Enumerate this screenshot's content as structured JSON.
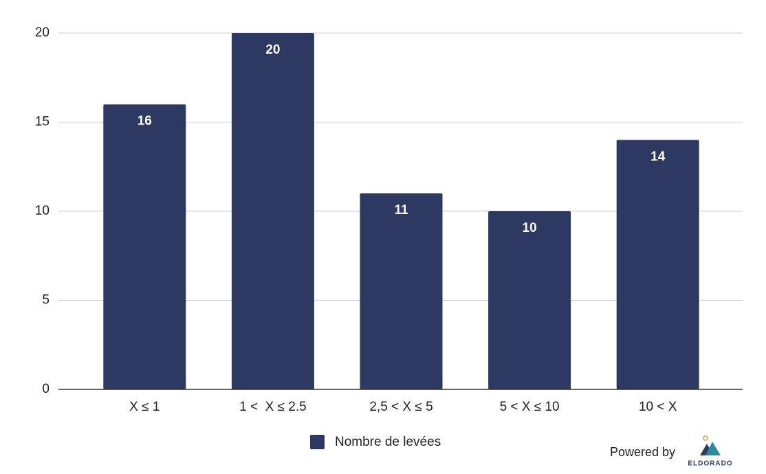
{
  "chart_data": {
    "type": "bar",
    "categories": [
      "X ≤ 1",
      "1 <  X ≤ 2.5",
      "2,5 < X ≤ 5",
      "5 < X ≤ 10",
      "10 < X"
    ],
    "series": [
      {
        "name": "Nombre de levées",
        "color": "#2e3961",
        "values": [
          16,
          20,
          11,
          10,
          14
        ]
      }
    ],
    "ylim": [
      0,
      20
    ],
    "yticks": [
      0,
      5,
      10,
      15,
      20
    ],
    "grid": true,
    "data_labels": true,
    "legend": "bottom"
  },
  "footer": {
    "powered_by": "Powered by",
    "brand": "ELDORADO"
  }
}
